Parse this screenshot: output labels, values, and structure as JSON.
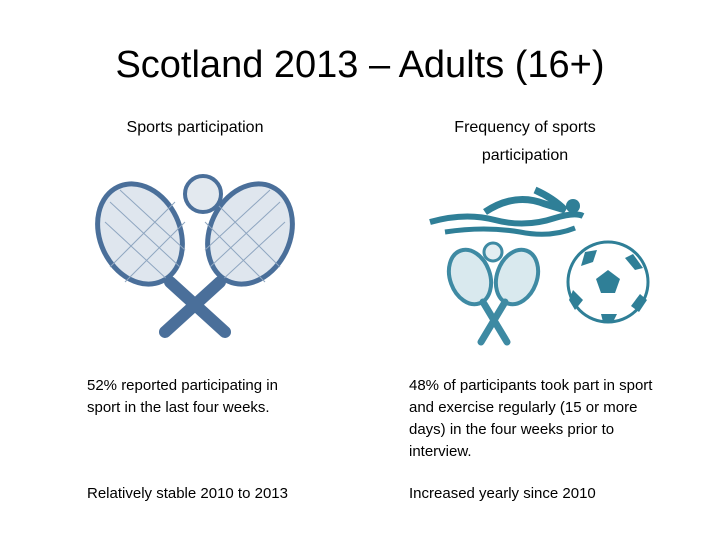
{
  "title": "Scotland 2013 – Adults (16+)",
  "left": {
    "heading": "Sports participation",
    "finding": "52% reported participating in sport in the last four weeks.",
    "trend": "Relatively stable 2010 to 2013"
  },
  "right": {
    "heading": "Frequency of sports participation",
    "finding": "48% of participants took part in sport and exercise regularly (15 or more days) in the four weeks prior to interview.",
    "trend": "Increased yearly since 2010"
  }
}
